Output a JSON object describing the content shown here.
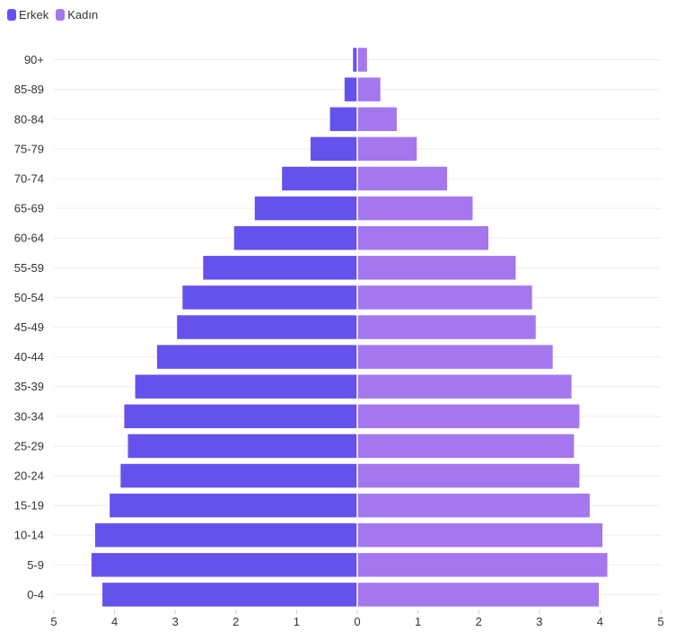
{
  "chart_data": {
    "type": "bar",
    "orientation": "horizontal",
    "layout": "population-pyramid",
    "categories": [
      "0-4",
      "5-9",
      "10-14",
      "15-19",
      "20-24",
      "25-29",
      "30-34",
      "35-39",
      "40-44",
      "45-49",
      "50-54",
      "55-59",
      "60-64",
      "65-69",
      "70-74",
      "75-79",
      "80-84",
      "85-89",
      "90+"
    ],
    "series": [
      {
        "name": "Erkek",
        "side": "left",
        "color": "#6552EC",
        "values": [
          4.2,
          4.38,
          4.32,
          4.08,
          3.9,
          3.78,
          3.84,
          3.66,
          3.3,
          2.97,
          2.88,
          2.54,
          2.03,
          1.69,
          1.24,
          0.77,
          0.45,
          0.21,
          0.07
        ]
      },
      {
        "name": "Kadın",
        "side": "right",
        "color": "#A577EE",
        "values": [
          3.98,
          4.12,
          4.04,
          3.83,
          3.66,
          3.57,
          3.66,
          3.53,
          3.22,
          2.94,
          2.88,
          2.61,
          2.16,
          1.9,
          1.48,
          0.98,
          0.65,
          0.38,
          0.16
        ]
      }
    ],
    "x_ticks": [
      {
        "label": "5",
        "value": -5
      },
      {
        "label": "4",
        "value": -4
      },
      {
        "label": "3",
        "value": -3
      },
      {
        "label": "2",
        "value": -2
      },
      {
        "label": "1",
        "value": -1
      },
      {
        "label": "0",
        "value": 0
      },
      {
        "label": "1",
        "value": 1
      },
      {
        "label": "2",
        "value": 2
      },
      {
        "label": "3",
        "value": 3
      },
      {
        "label": "4",
        "value": 4
      },
      {
        "label": "5",
        "value": 5
      }
    ],
    "xlim": [
      -5,
      5
    ],
    "title": "",
    "xlabel": "",
    "ylabel": "",
    "grid": true,
    "legend_position": "top-left"
  }
}
